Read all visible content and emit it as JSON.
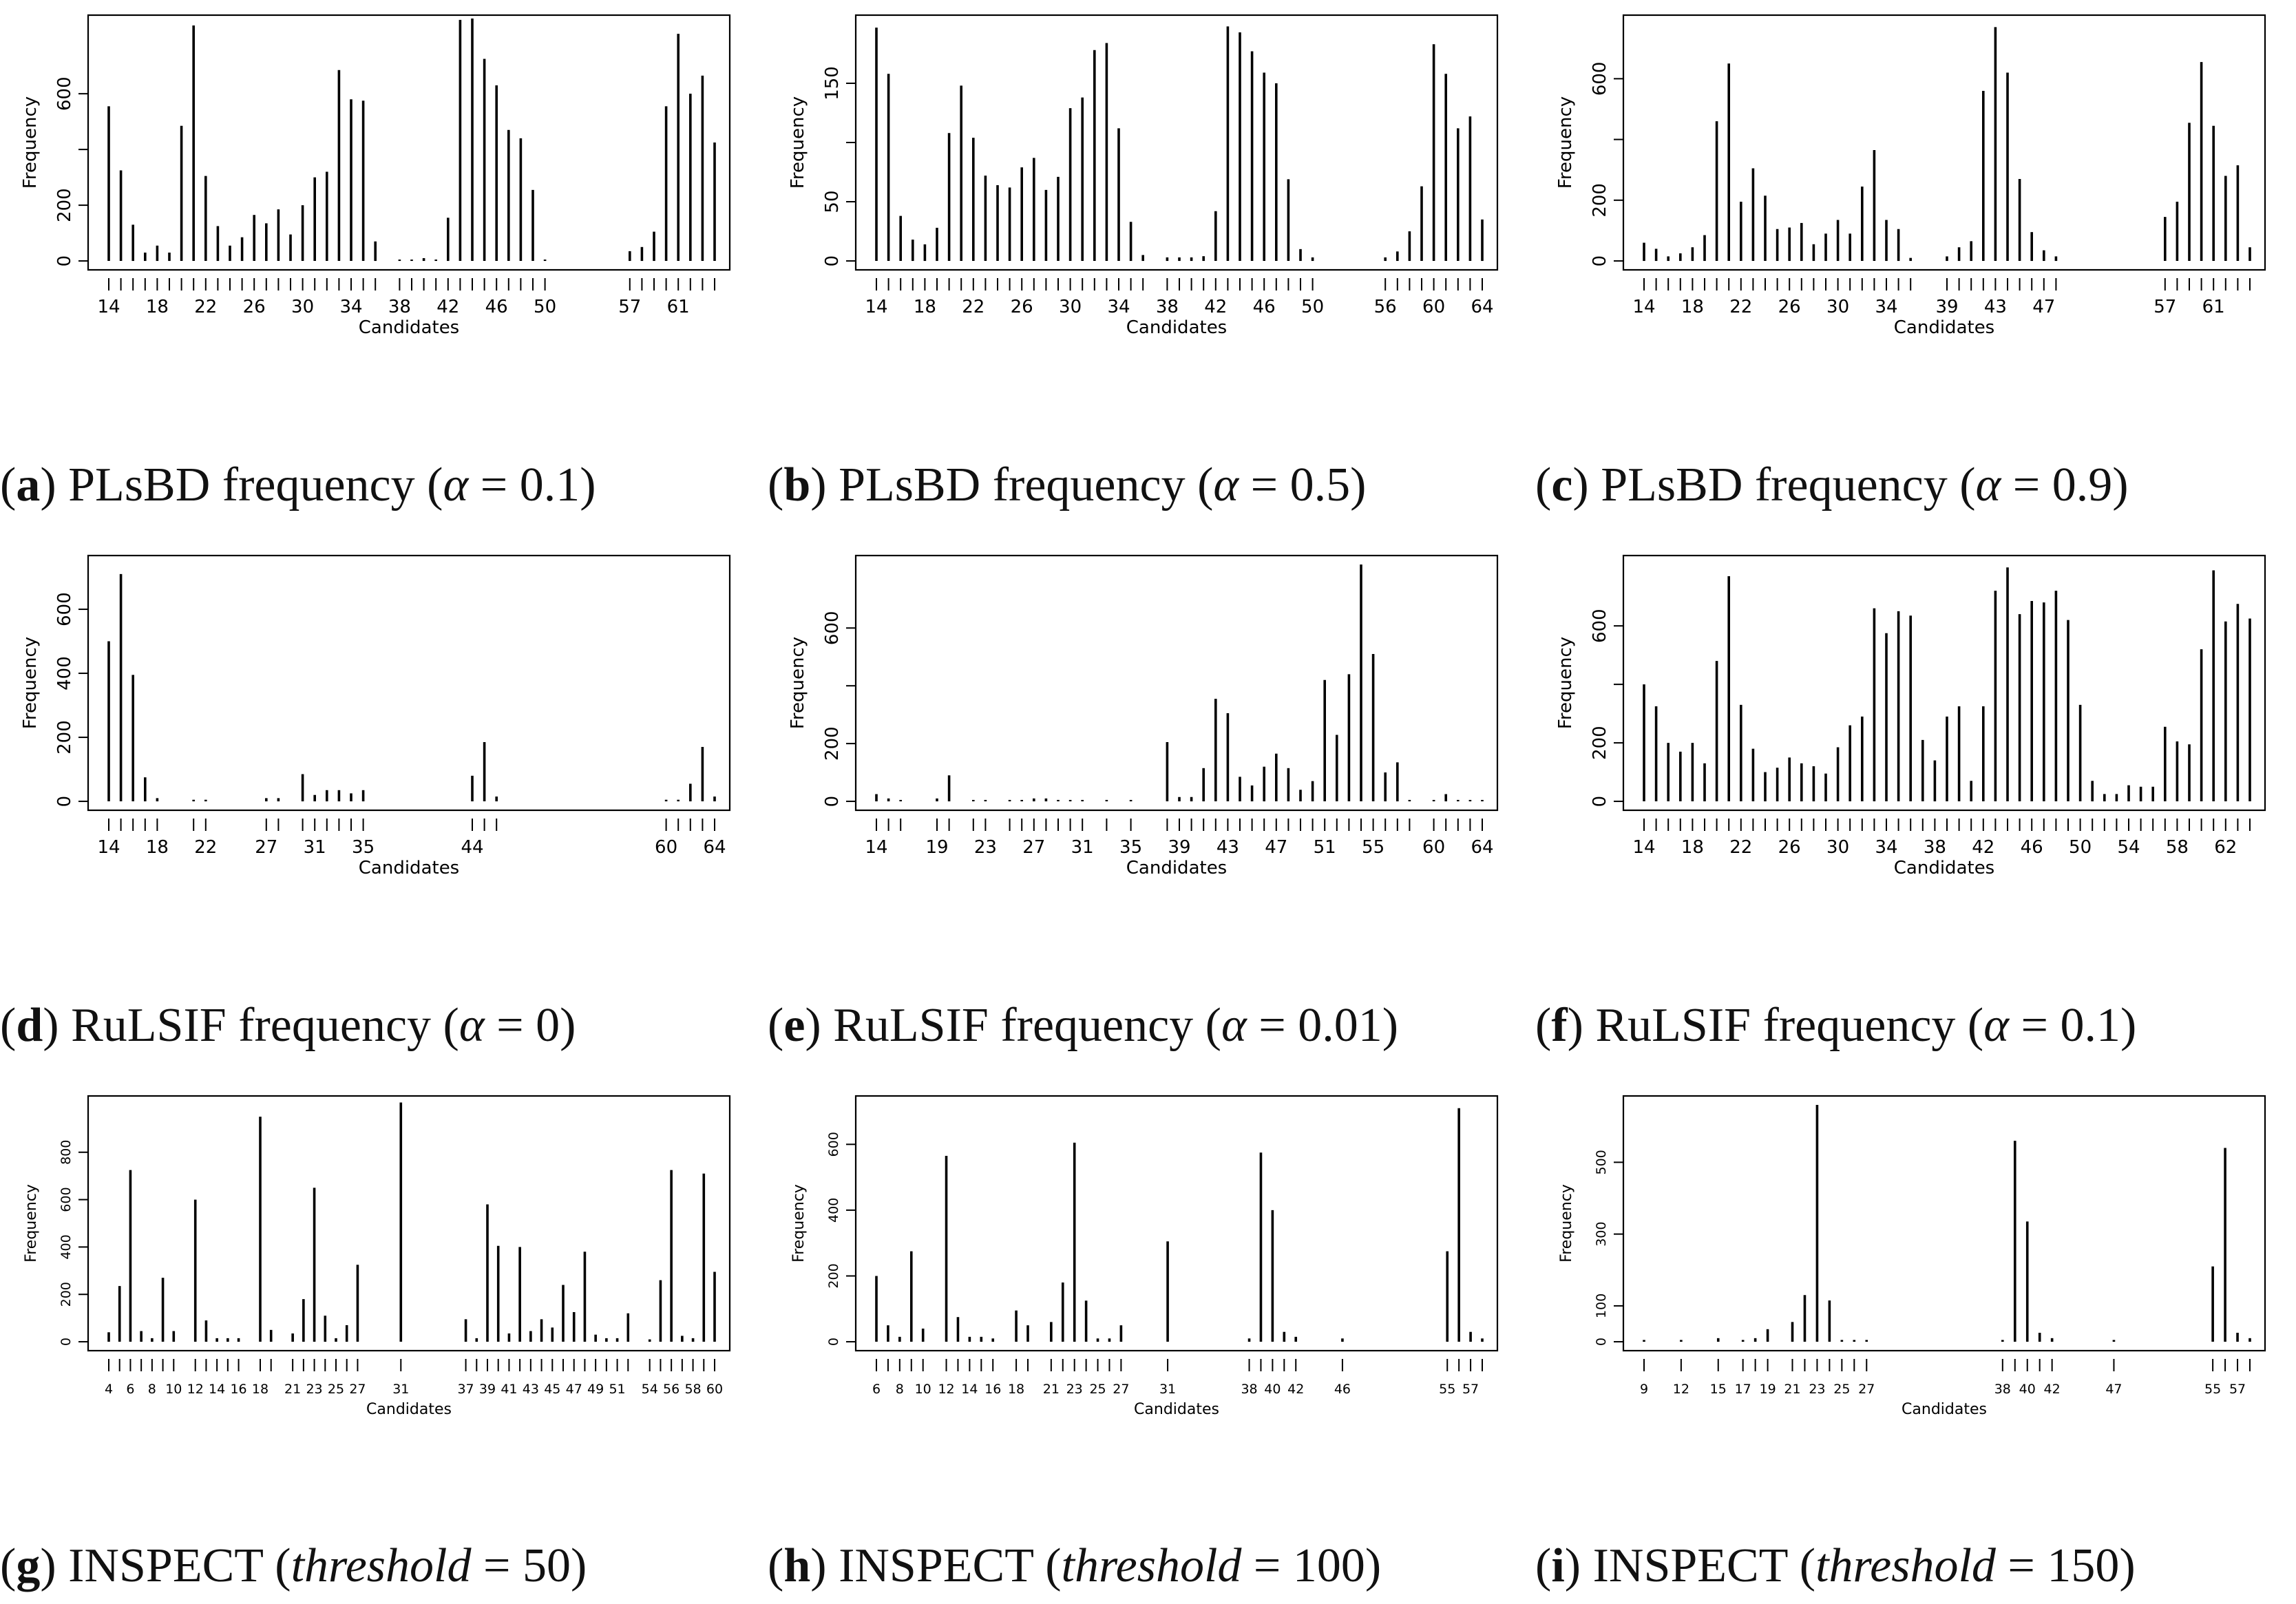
{
  "figure": {
    "panels": [
      {
        "letter": "a",
        "method": "PLsBD frequency",
        "param_symbol": "α",
        "param_value": "0.1"
      },
      {
        "letter": "b",
        "method": "PLsBD frequency",
        "param_symbol": "α",
        "param_value": "0.5"
      },
      {
        "letter": "c",
        "method": "PLsBD frequency",
        "param_symbol": "α",
        "param_value": "0.9"
      },
      {
        "letter": "d",
        "method": "RuLSIF frequency",
        "param_symbol": "α",
        "param_value": "0"
      },
      {
        "letter": "e",
        "method": "RuLSIF frequency",
        "param_symbol": "α",
        "param_value": "0.01"
      },
      {
        "letter": "f",
        "method": "RuLSIF frequency",
        "param_symbol": "α",
        "param_value": "0.1"
      },
      {
        "letter": "g",
        "method": "INSPECT",
        "param_symbol": "threshold",
        "param_value": "50"
      },
      {
        "letter": "h",
        "method": "INSPECT",
        "param_symbol": "threshold",
        "param_value": "100"
      },
      {
        "letter": "i",
        "method": "INSPECT",
        "param_symbol": "threshold",
        "param_value": "150"
      }
    ]
  },
  "chart_data": [
    {
      "id": "a",
      "type": "bar",
      "xlabel": "Candidates",
      "ylabel": "Frequency",
      "ylim": [
        0,
        850
      ],
      "yticks": [
        0,
        200,
        400,
        600
      ],
      "yticklabels": [
        "0",
        "200",
        "",
        "600"
      ],
      "xticklabels": [
        "14",
        "18",
        "22",
        "26",
        "30",
        "34",
        "38",
        "42",
        "46",
        "50",
        "57",
        "61"
      ],
      "x": [
        14,
        15,
        16,
        17,
        18,
        19,
        20,
        21,
        22,
        23,
        24,
        25,
        26,
        27,
        28,
        29,
        30,
        31,
        32,
        33,
        34,
        35,
        36,
        38,
        39,
        40,
        41,
        42,
        43,
        44,
        45,
        46,
        47,
        48,
        49,
        50,
        57,
        58,
        59,
        60,
        61,
        62,
        63,
        64
      ],
      "values": [
        555,
        325,
        130,
        30,
        55,
        30,
        485,
        845,
        305,
        125,
        55,
        85,
        165,
        135,
        185,
        95,
        200,
        300,
        320,
        685,
        580,
        575,
        70,
        5,
        5,
        10,
        5,
        155,
        865,
        870,
        725,
        630,
        470,
        440,
        255,
        5,
        35,
        50,
        105,
        555,
        815,
        600,
        665,
        425
      ]
    },
    {
      "id": "b",
      "type": "bar",
      "xlabel": "Candidates",
      "ylabel": "Frequency",
      "ylim": [
        0,
        200
      ],
      "yticks": [
        0,
        50,
        100,
        150
      ],
      "yticklabels": [
        "0",
        "50",
        "",
        "150"
      ],
      "xticklabels": [
        "14",
        "18",
        "22",
        "26",
        "30",
        "34",
        "38",
        "42",
        "46",
        "50",
        "56",
        "60",
        "64"
      ],
      "x": [
        14,
        15,
        16,
        17,
        18,
        19,
        20,
        21,
        22,
        23,
        24,
        25,
        26,
        27,
        28,
        29,
        30,
        31,
        32,
        33,
        34,
        35,
        36,
        38,
        39,
        40,
        41,
        42,
        43,
        44,
        45,
        46,
        47,
        48,
        49,
        50,
        56,
        57,
        58,
        59,
        60,
        61,
        62,
        63,
        64
      ],
      "values": [
        197,
        158,
        38,
        18,
        14,
        28,
        108,
        148,
        104,
        72,
        64,
        62,
        79,
        87,
        60,
        71,
        129,
        138,
        178,
        184,
        112,
        33,
        5,
        3,
        3,
        3,
        4,
        42,
        198,
        193,
        177,
        159,
        150,
        69,
        10,
        3,
        3,
        8,
        25,
        63,
        183,
        158,
        112,
        122,
        35
      ]
    },
    {
      "id": "c",
      "type": "bar",
      "xlabel": "Candidates",
      "ylabel": "Frequency",
      "ylim": [
        0,
        780
      ],
      "yticks": [
        0,
        200,
        400,
        600
      ],
      "yticklabels": [
        "0",
        "200",
        "",
        "600"
      ],
      "xticklabels": [
        "14",
        "18",
        "22",
        "26",
        "30",
        "34",
        "39",
        "43",
        "47",
        "57",
        "61"
      ],
      "x": [
        14,
        15,
        16,
        17,
        18,
        19,
        20,
        21,
        22,
        23,
        24,
        25,
        26,
        27,
        28,
        29,
        30,
        31,
        32,
        33,
        34,
        35,
        36,
        39,
        40,
        41,
        42,
        43,
        44,
        45,
        46,
        47,
        48,
        57,
        58,
        59,
        60,
        61,
        62,
        63,
        64
      ],
      "values": [
        60,
        40,
        15,
        25,
        45,
        85,
        460,
        650,
        195,
        305,
        215,
        105,
        110,
        125,
        55,
        90,
        135,
        90,
        245,
        365,
        135,
        105,
        10,
        15,
        45,
        65,
        560,
        770,
        620,
        270,
        95,
        35,
        15,
        145,
        195,
        455,
        655,
        445,
        280,
        315,
        45
      ]
    },
    {
      "id": "d",
      "type": "bar",
      "xlabel": "Candidates",
      "ylabel": "Frequency",
      "ylim": [
        0,
        740
      ],
      "yticks": [
        0,
        200,
        400,
        600
      ],
      "yticklabels": [
        "0",
        "200",
        "400",
        "600"
      ],
      "xticklabels": [
        "14",
        "18",
        "22",
        "27",
        "31",
        "35",
        "44",
        "60",
        "64"
      ],
      "x": [
        14,
        15,
        16,
        17,
        18,
        21,
        22,
        27,
        28,
        30,
        31,
        32,
        33,
        34,
        35,
        44,
        45,
        46,
        60,
        61,
        62,
        63,
        64
      ],
      "values": [
        500,
        710,
        395,
        75,
        10,
        5,
        5,
        10,
        10,
        85,
        20,
        35,
        35,
        25,
        35,
        80,
        185,
        15,
        5,
        5,
        55,
        170,
        15
      ]
    },
    {
      "id": "e",
      "type": "bar",
      "xlabel": "Candidates",
      "ylabel": "Frequency",
      "ylim": [
        0,
        820
      ],
      "yticks": [
        0,
        200,
        400,
        600
      ],
      "yticklabels": [
        "0",
        "200",
        "",
        "600"
      ],
      "xticklabels": [
        "14",
        "19",
        "23",
        "27",
        "31",
        "35",
        "39",
        "43",
        "47",
        "51",
        "55",
        "60",
        "64"
      ],
      "x": [
        14,
        15,
        16,
        19,
        20,
        22,
        23,
        25,
        26,
        27,
        28,
        29,
        30,
        31,
        33,
        35,
        38,
        39,
        40,
        41,
        42,
        43,
        44,
        45,
        46,
        47,
        48,
        49,
        50,
        51,
        52,
        53,
        54,
        55,
        56,
        57,
        58,
        60,
        61,
        62,
        63,
        64
      ],
      "values": [
        25,
        10,
        5,
        10,
        90,
        5,
        5,
        5,
        5,
        10,
        10,
        5,
        5,
        5,
        5,
        5,
        205,
        15,
        15,
        115,
        355,
        305,
        85,
        55,
        120,
        165,
        115,
        40,
        70,
        420,
        230,
        440,
        820,
        510,
        100,
        135,
        5,
        5,
        25,
        5,
        5,
        5
      ]
    },
    {
      "id": "f",
      "type": "bar",
      "xlabel": "Candidates",
      "ylabel": "Frequency",
      "ylim": [
        0,
        810
      ],
      "yticks": [
        0,
        200,
        400,
        600
      ],
      "yticklabels": [
        "0",
        "200",
        "",
        "600"
      ],
      "xticklabels": [
        "14",
        "18",
        "22",
        "26",
        "30",
        "34",
        "38",
        "42",
        "46",
        "50",
        "54",
        "58",
        "62"
      ],
      "x": [
        14,
        15,
        16,
        17,
        18,
        19,
        20,
        21,
        22,
        23,
        24,
        25,
        26,
        27,
        28,
        29,
        30,
        31,
        32,
        33,
        34,
        35,
        36,
        37,
        38,
        39,
        40,
        41,
        42,
        43,
        44,
        45,
        46,
        47,
        48,
        49,
        50,
        51,
        52,
        53,
        54,
        55,
        56,
        57,
        58,
        59,
        60,
        61,
        62,
        63,
        64
      ],
      "values": [
        400,
        325,
        200,
        170,
        200,
        130,
        480,
        770,
        330,
        180,
        100,
        115,
        150,
        130,
        120,
        95,
        185,
        260,
        290,
        660,
        575,
        650,
        635,
        210,
        140,
        290,
        325,
        70,
        325,
        720,
        800,
        640,
        685,
        680,
        720,
        620,
        330,
        70,
        25,
        25,
        55,
        50,
        50,
        255,
        205,
        195,
        520,
        790,
        615,
        675,
        625
      ]
    },
    {
      "id": "g",
      "type": "bar",
      "xlabel": "Candidates",
      "ylabel": "Frequency",
      "ylim": [
        0,
        1000
      ],
      "yticks": [
        0,
        200,
        400,
        600,
        800
      ],
      "yticklabels": [
        "0",
        "200",
        "400",
        "600",
        "800"
      ],
      "xticklabels": [
        "4",
        "6",
        "8",
        "10",
        "12",
        "14",
        "16",
        "18",
        "21",
        "23",
        "25",
        "27",
        "31",
        "37",
        "39",
        "41",
        "43",
        "45",
        "47",
        "49",
        "51",
        "54",
        "56",
        "58",
        "60"
      ],
      "x": [
        4,
        5,
        6,
        7,
        8,
        9,
        10,
        12,
        13,
        14,
        15,
        16,
        18,
        19,
        21,
        22,
        23,
        24,
        25,
        26,
        27,
        31,
        37,
        38,
        39,
        40,
        41,
        42,
        43,
        44,
        45,
        46,
        47,
        48,
        49,
        50,
        51,
        52,
        54,
        55,
        56,
        57,
        58,
        59,
        60
      ],
      "values": [
        40,
        235,
        725,
        45,
        15,
        270,
        45,
        600,
        90,
        15,
        15,
        15,
        950,
        50,
        35,
        180,
        650,
        110,
        15,
        70,
        325,
        1010,
        95,
        15,
        580,
        405,
        35,
        400,
        45,
        95,
        60,
        240,
        125,
        380,
        30,
        15,
        15,
        120,
        10,
        260,
        725,
        25,
        15,
        710,
        295
      ]
    },
    {
      "id": "h",
      "type": "bar",
      "xlabel": "Candidates",
      "ylabel": "Frequency",
      "ylim": [
        0,
        720
      ],
      "yticks": [
        0,
        200,
        400,
        600
      ],
      "yticklabels": [
        "0",
        "200",
        "400",
        "600"
      ],
      "xticklabels": [
        "6",
        "8",
        "10",
        "12",
        "14",
        "16",
        "18",
        "21",
        "23",
        "25",
        "27",
        "31",
        "38",
        "40",
        "42",
        "46",
        "55",
        "57"
      ],
      "x": [
        6,
        7,
        8,
        9,
        10,
        12,
        13,
        14,
        15,
        16,
        18,
        19,
        21,
        22,
        23,
        24,
        25,
        26,
        27,
        31,
        38,
        39,
        40,
        41,
        42,
        46,
        55,
        56,
        57,
        58
      ],
      "values": [
        200,
        50,
        15,
        275,
        40,
        565,
        75,
        15,
        15,
        10,
        95,
        50,
        60,
        180,
        605,
        125,
        10,
        10,
        50,
        305,
        10,
        575,
        400,
        30,
        15,
        10,
        275,
        710,
        30,
        10
      ]
    },
    {
      "id": "i",
      "type": "bar",
      "xlabel": "Candidates",
      "ylabel": "Frequency",
      "ylim": [
        0,
        660
      ],
      "yticks": [
        0,
        100,
        300,
        500
      ],
      "yticklabels": [
        "0",
        "100",
        "300",
        "500"
      ],
      "xticklabels": [
        "9",
        "12",
        "15",
        "17",
        "19",
        "21",
        "23",
        "25",
        "27",
        "38",
        "40",
        "42",
        "47",
        "55",
        "57"
      ],
      "x": [
        9,
        12,
        15,
        17,
        18,
        19,
        21,
        22,
        23,
        24,
        25,
        26,
        27,
        38,
        39,
        40,
        41,
        42,
        47,
        55,
        56,
        57,
        58
      ],
      "values": [
        5,
        5,
        10,
        5,
        10,
        35,
        55,
        130,
        660,
        115,
        5,
        5,
        5,
        5,
        560,
        335,
        25,
        10,
        5,
        210,
        540,
        25,
        10
      ]
    }
  ]
}
